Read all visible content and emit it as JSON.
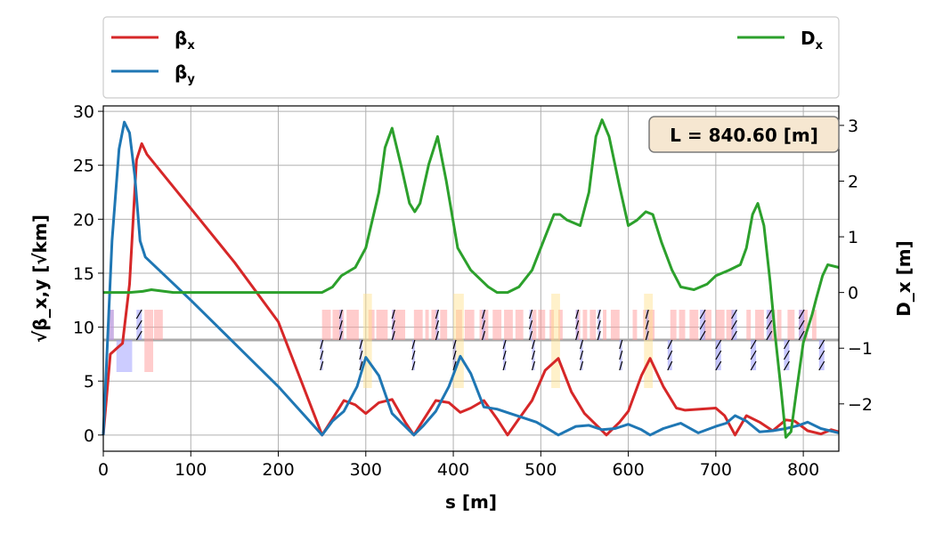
{
  "chart_data": {
    "type": "line",
    "xlabel": "s [m]",
    "ylabel_left": "√β_x,y [√km]",
    "ylabel_right": "D_x [m]",
    "xlim": [
      0,
      840.6
    ],
    "ylim_left": [
      -1.5,
      30.5
    ],
    "ylim_right": [
      -2.85,
      3.35
    ],
    "xticks": [
      "0",
      "100",
      "200",
      "300",
      "400",
      "500",
      "600",
      "700",
      "800"
    ],
    "yticks_left": [
      "0",
      "5",
      "10",
      "15",
      "20",
      "25",
      "30"
    ],
    "yticks_right": [
      "−2",
      "−1",
      "0",
      "1",
      "2",
      "3"
    ],
    "grid": true,
    "legend_placement": "top",
    "annotation": "L = 840.60 [m]",
    "legend": {
      "beta_x": {
        "base": "β",
        "sub": "x"
      },
      "beta_y": {
        "base": "β",
        "sub": "y"
      },
      "disp": {
        "base": "D",
        "sub": "x"
      }
    },
    "series": [
      {
        "key": "beta_x",
        "name": "βx",
        "axis": "left",
        "color": "#d62728",
        "x": [
          0,
          8,
          15,
          22,
          30,
          38,
          44,
          50,
          100,
          150,
          200,
          250,
          262,
          275,
          288,
          300,
          315,
          330,
          345,
          355,
          365,
          380,
          395,
          408,
          420,
          435,
          450,
          462,
          475,
          490,
          505,
          520,
          535,
          550,
          565,
          575,
          590,
          600,
          615,
          625,
          640,
          655,
          665,
          700,
          710,
          722,
          735,
          750,
          765,
          780,
          790,
          805,
          820,
          832,
          840.6
        ],
        "y": [
          0,
          7.5,
          8,
          8.5,
          14,
          25.5,
          27,
          26,
          21,
          16,
          10.5,
          0,
          1.5,
          3.2,
          2.8,
          2.0,
          3.0,
          3.3,
          1.2,
          0,
          1.3,
          3.2,
          3.0,
          2.1,
          2.5,
          3.2,
          1.5,
          0,
          1.5,
          3.2,
          6.0,
          7.1,
          4.0,
          2.0,
          0.8,
          0,
          1.2,
          2.2,
          5.5,
          7.1,
          4.5,
          2.5,
          2.3,
          2.5,
          1.8,
          0,
          1.8,
          1.2,
          0.4,
          1.4,
          1.3,
          0.4,
          0.1,
          0.5,
          0.3
        ]
      },
      {
        "key": "beta_y",
        "name": "βy",
        "axis": "left",
        "color": "#1f77b4",
        "x": [
          0,
          10,
          18,
          24,
          30,
          36,
          42,
          48,
          100,
          150,
          200,
          250,
          262,
          275,
          290,
          300,
          315,
          330,
          345,
          355,
          365,
          380,
          395,
          408,
          420,
          435,
          450,
          465,
          480,
          495,
          510,
          520,
          540,
          555,
          570,
          585,
          600,
          615,
          625,
          640,
          660,
          680,
          700,
          712,
          722,
          735,
          750,
          765,
          780,
          795,
          805,
          820,
          840.6
        ],
        "y": [
          0,
          18,
          26.5,
          29,
          28,
          24,
          18,
          16.5,
          12.5,
          8.5,
          4.5,
          0,
          1.3,
          2.2,
          4.5,
          7.2,
          5.5,
          2.0,
          0.8,
          0,
          0.8,
          2.2,
          4.5,
          7.3,
          5.7,
          2.6,
          2.4,
          2.0,
          1.6,
          1.2,
          0.5,
          0,
          0.8,
          0.9,
          0.5,
          0.6,
          1.0,
          0.5,
          0,
          0.6,
          1.1,
          0.2,
          0.8,
          1.1,
          1.8,
          1.3,
          0.3,
          0.4,
          0.6,
          0.9,
          1.2,
          0.6,
          0.2
        ]
      },
      {
        "key": "disp",
        "name": "Dx",
        "axis": "right",
        "color": "#2ca02c",
        "x": [
          0,
          30,
          45,
          55,
          80,
          150,
          250,
          262,
          272,
          288,
          300,
          315,
          322,
          330,
          340,
          350,
          356,
          362,
          372,
          382,
          392,
          405,
          420,
          440,
          450,
          462,
          475,
          490,
          505,
          515,
          522,
          530,
          545,
          555,
          563,
          570,
          578,
          590,
          600,
          610,
          620,
          628,
          638,
          650,
          660,
          675,
          690,
          700,
          715,
          728,
          735,
          742,
          748,
          755,
          762,
          768,
          775,
          780,
          786,
          792,
          800,
          810,
          815,
          822,
          828,
          840.6
        ],
        "y": [
          0,
          0,
          0.02,
          0.05,
          0,
          0,
          0,
          0.1,
          0.3,
          0.45,
          0.8,
          1.8,
          2.6,
          2.95,
          2.3,
          1.6,
          1.45,
          1.6,
          2.3,
          2.8,
          2.0,
          0.8,
          0.4,
          0.1,
          0,
          0,
          0.1,
          0.4,
          1.0,
          1.4,
          1.4,
          1.3,
          1.2,
          1.8,
          2.8,
          3.1,
          2.8,
          1.9,
          1.2,
          1.3,
          1.45,
          1.4,
          0.9,
          0.4,
          0.1,
          0.05,
          0.15,
          0.3,
          0.4,
          0.5,
          0.8,
          1.4,
          1.6,
          1.2,
          0.2,
          -0.8,
          -1.8,
          -2.6,
          -2.5,
          -1.8,
          -0.9,
          -0.4,
          -0.1,
          0.3,
          0.5,
          0.45
        ]
      }
    ],
    "magnets": {
      "pink": [
        [
          5,
          12
        ],
        [
          47,
          57
        ],
        [
          58,
          68
        ],
        [
          250,
          260
        ],
        [
          262,
          275
        ],
        [
          278,
          292
        ],
        [
          303,
          310
        ],
        [
          312,
          325
        ],
        [
          330,
          345
        ],
        [
          355,
          365
        ],
        [
          368,
          372
        ],
        [
          375,
          382
        ],
        [
          385,
          393
        ],
        [
          403,
          410
        ],
        [
          413,
          424
        ],
        [
          430,
          440
        ],
        [
          445,
          455
        ],
        [
          458,
          468
        ],
        [
          471,
          480
        ],
        [
          490,
          495
        ],
        [
          497,
          505
        ],
        [
          510,
          515
        ],
        [
          520,
          525
        ],
        [
          540,
          545
        ],
        [
          548,
          553
        ],
        [
          556,
          563
        ],
        [
          571,
          575
        ],
        [
          580,
          590
        ],
        [
          605,
          610
        ],
        [
          617,
          630
        ],
        [
          648,
          655
        ],
        [
          658,
          665
        ],
        [
          670,
          680
        ],
        [
          686,
          695
        ],
        [
          700,
          710
        ],
        [
          712,
          720
        ],
        [
          735,
          740
        ],
        [
          745,
          755
        ],
        [
          760,
          768
        ],
        [
          770,
          775
        ],
        [
          782,
          790
        ],
        [
          795,
          805
        ],
        [
          810,
          815
        ]
      ],
      "pink_low": [
        [
          47,
          57
        ]
      ],
      "blue_low": [
        [
          15,
          33
        ]
      ],
      "blue_hi": [
        [
          5,
          12
        ]
      ],
      "yellow": [
        [
          297,
          307
        ],
        [
          400,
          412
        ],
        [
          512,
          522
        ],
        [
          618,
          628
        ]
      ],
      "quads": [
        [
          38,
          44
        ],
        [
          248,
          251
        ],
        [
          270,
          273
        ],
        [
          293,
          295
        ],
        [
          330,
          332
        ],
        [
          353,
          355
        ],
        [
          380,
          382
        ],
        [
          400,
          402
        ],
        [
          433,
          435
        ],
        [
          457,
          459
        ],
        [
          487,
          489
        ],
        [
          490,
          492
        ],
        [
          540,
          542
        ],
        [
          545,
          547
        ],
        [
          565,
          567
        ],
        [
          590,
          592
        ],
        [
          620,
          622
        ],
        [
          645,
          650
        ],
        [
          682,
          688
        ],
        [
          700,
          706
        ],
        [
          718,
          724
        ],
        [
          740,
          746
        ],
        [
          758,
          764
        ],
        [
          778,
          784
        ],
        [
          795,
          801
        ],
        [
          818,
          824
        ]
      ]
    }
  }
}
